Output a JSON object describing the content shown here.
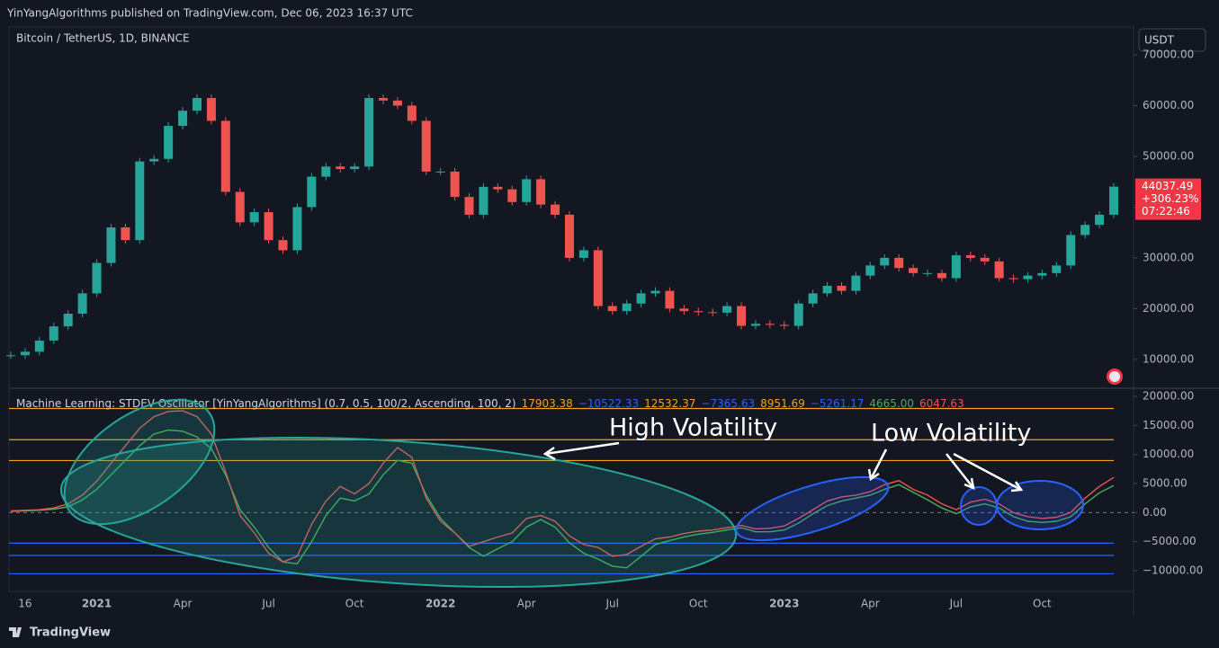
{
  "header": {
    "title": "YinYangAlgorithms published on TradingView.com, Dec 06, 2023 16:37 UTC",
    "footer": "TradingView",
    "currency": "USDT"
  },
  "chart_data": [
    {
      "type": "candle",
      "title": "Bitcoin / TetherUS, 1D, BINANCE",
      "categories": [
        null,
        "16",
        null,
        null,
        null,
        null,
        "2021",
        null,
        null,
        null,
        null,
        null,
        "Apr",
        null,
        null,
        null,
        null,
        null,
        "Jul",
        null,
        null,
        null,
        null,
        null,
        "Oct",
        null,
        null,
        null,
        null,
        null,
        "2022",
        null,
        null,
        null,
        null,
        null,
        "Apr",
        null,
        null,
        null,
        null,
        null,
        "Jul",
        null,
        null,
        null,
        null,
        null,
        "Oct",
        null,
        null,
        null,
        null,
        null,
        "2023",
        null,
        null,
        null,
        null,
        null,
        "Apr",
        null,
        null,
        null,
        null,
        null,
        "Jul",
        null,
        null,
        null,
        null,
        null,
        "Oct",
        null,
        null,
        null,
        null,
        null
      ],
      "values": [
        10800,
        11500,
        13700,
        16500,
        19000,
        23000,
        29000,
        36000,
        33500,
        49000,
        49500,
        56000,
        59000,
        61500,
        57000,
        43000,
        37000,
        39000,
        33500,
        31500,
        40000,
        46000,
        48000,
        47500,
        48000,
        61500,
        61000,
        60000,
        57000,
        47000,
        47000,
        42000,
        38500,
        44000,
        43500,
        41000,
        45500,
        40500,
        38500,
        30000,
        31500,
        20500,
        19500,
        21000,
        23000,
        23500,
        20000,
        19500,
        19300,
        19200,
        20500,
        16600,
        17000,
        16800,
        16600,
        21000,
        23000,
        24500,
        23500,
        26500,
        28500,
        30000,
        28000,
        27000,
        27000,
        26000,
        30500,
        30000,
        29300,
        26000,
        25800,
        26500,
        27000,
        28500,
        34500,
        36500,
        38500,
        44037.49
      ],
      "up_color": "#26a69a",
      "down_color": "#ef5350",
      "ylim": [
        4300,
        75500
      ],
      "yticks": [
        {
          "value": 10000,
          "label": "10000.00"
        },
        {
          "value": 20000,
          "label": "20000.00"
        },
        {
          "value": 30000,
          "label": "30000.00"
        },
        {
          "value": 40000,
          "label": "40000.00"
        },
        {
          "value": 50000,
          "label": "50000.00"
        },
        {
          "value": 60000,
          "label": "60000.00"
        },
        {
          "value": 70000,
          "label": "70000.00"
        }
      ],
      "last_price": {
        "value": 44037.49,
        "label": "44037.49",
        "change": "+306.23%",
        "countdown": "07:22:46",
        "color": "#f23645"
      }
    },
    {
      "type": "line",
      "title": "Machine Learning: STDEV Oscillator [YinYangAlgorithms] (0.7, 0.5, 100/2, Ascending, 100, 2)",
      "levels": [
        {
          "value": 17903.38,
          "label": "17903.38",
          "color": "#f7a21b"
        },
        {
          "value": -10522.33,
          "label": "−10522.33",
          "color": "#2962ff"
        },
        {
          "value": 12532.37,
          "label": "12532.37",
          "color": "#f7a21b"
        },
        {
          "value": -7365.63,
          "label": "−7365.63",
          "color": "#2962ff"
        },
        {
          "value": 8951.69,
          "label": "8951.69",
          "color": "#f7a21b"
        },
        {
          "value": -5261.17,
          "label": "−5261.17",
          "color": "#2962ff"
        }
      ],
      "series": [
        {
          "color": "#4caf50",
          "last_label": "4665.00",
          "values": [
            200,
            300,
            400,
            600,
            1000,
            2200,
            4000,
            6500,
            9000,
            11500,
            13500,
            14200,
            14000,
            13000,
            11000,
            6500,
            500,
            -2500,
            -6000,
            -8500,
            -8800,
            -5000,
            -500,
            2500,
            2000,
            3200,
            6500,
            9000,
            8500,
            3000,
            -1000,
            -3500,
            -6000,
            -7500,
            -6200,
            -5000,
            -2500,
            -1200,
            -2500,
            -5200,
            -7000,
            -8000,
            -9200,
            -9500,
            -7500,
            -5500,
            -4800,
            -4200,
            -3700,
            -3400,
            -3000,
            -2600,
            -3300,
            -3300,
            -3000,
            -1800,
            -200,
            1200,
            2000,
            2500,
            3000,
            4000,
            4800,
            3500,
            2200,
            800,
            -200,
            1000,
            1500,
            800,
            -700,
            -1500,
            -1700,
            -1500,
            -700,
            1500,
            3400,
            4665
          ]
        },
        {
          "color": "#f05350",
          "last_label": "6047.63",
          "values": [
            300,
            400,
            500,
            800,
            1500,
            3000,
            5400,
            8500,
            11500,
            14500,
            16500,
            17400,
            17500,
            16500,
            13500,
            7000,
            -500,
            -3500,
            -7000,
            -8500,
            -7500,
            -2000,
            2000,
            4500,
            3200,
            5000,
            8500,
            11200,
            9500,
            2500,
            -1500,
            -3500,
            -5800,
            -5000,
            -4200,
            -3500,
            -1000,
            -500,
            -1500,
            -4000,
            -5500,
            -6000,
            -7500,
            -7200,
            -5800,
            -4500,
            -4200,
            -3600,
            -3200,
            -3000,
            -2600,
            -2200,
            -2800,
            -2700,
            -2300,
            -1000,
            500,
            2000,
            2700,
            3000,
            3600,
            4800,
            5500,
            4000,
            3000,
            1500,
            500,
            1800,
            2300,
            1500,
            0,
            -700,
            -1000,
            -800,
            0,
            2500,
            4500,
            6047.63
          ]
        }
      ],
      "ylim": [
        -13550,
        21230
      ],
      "yticks": [
        {
          "value": 20000,
          "label": "20000.00"
        },
        {
          "value": 15000,
          "label": "15000.00"
        },
        {
          "value": 10000,
          "label": "10000.00"
        },
        {
          "value": 5000,
          "label": "5000.00"
        },
        {
          "value": 0,
          "label": "0.00"
        },
        {
          "value": -5000,
          "label": "−5000.00"
        },
        {
          "value": -10000,
          "label": "−10000.00"
        }
      ],
      "annotations": [
        "High Volatility",
        "Low Volatility"
      ]
    }
  ]
}
